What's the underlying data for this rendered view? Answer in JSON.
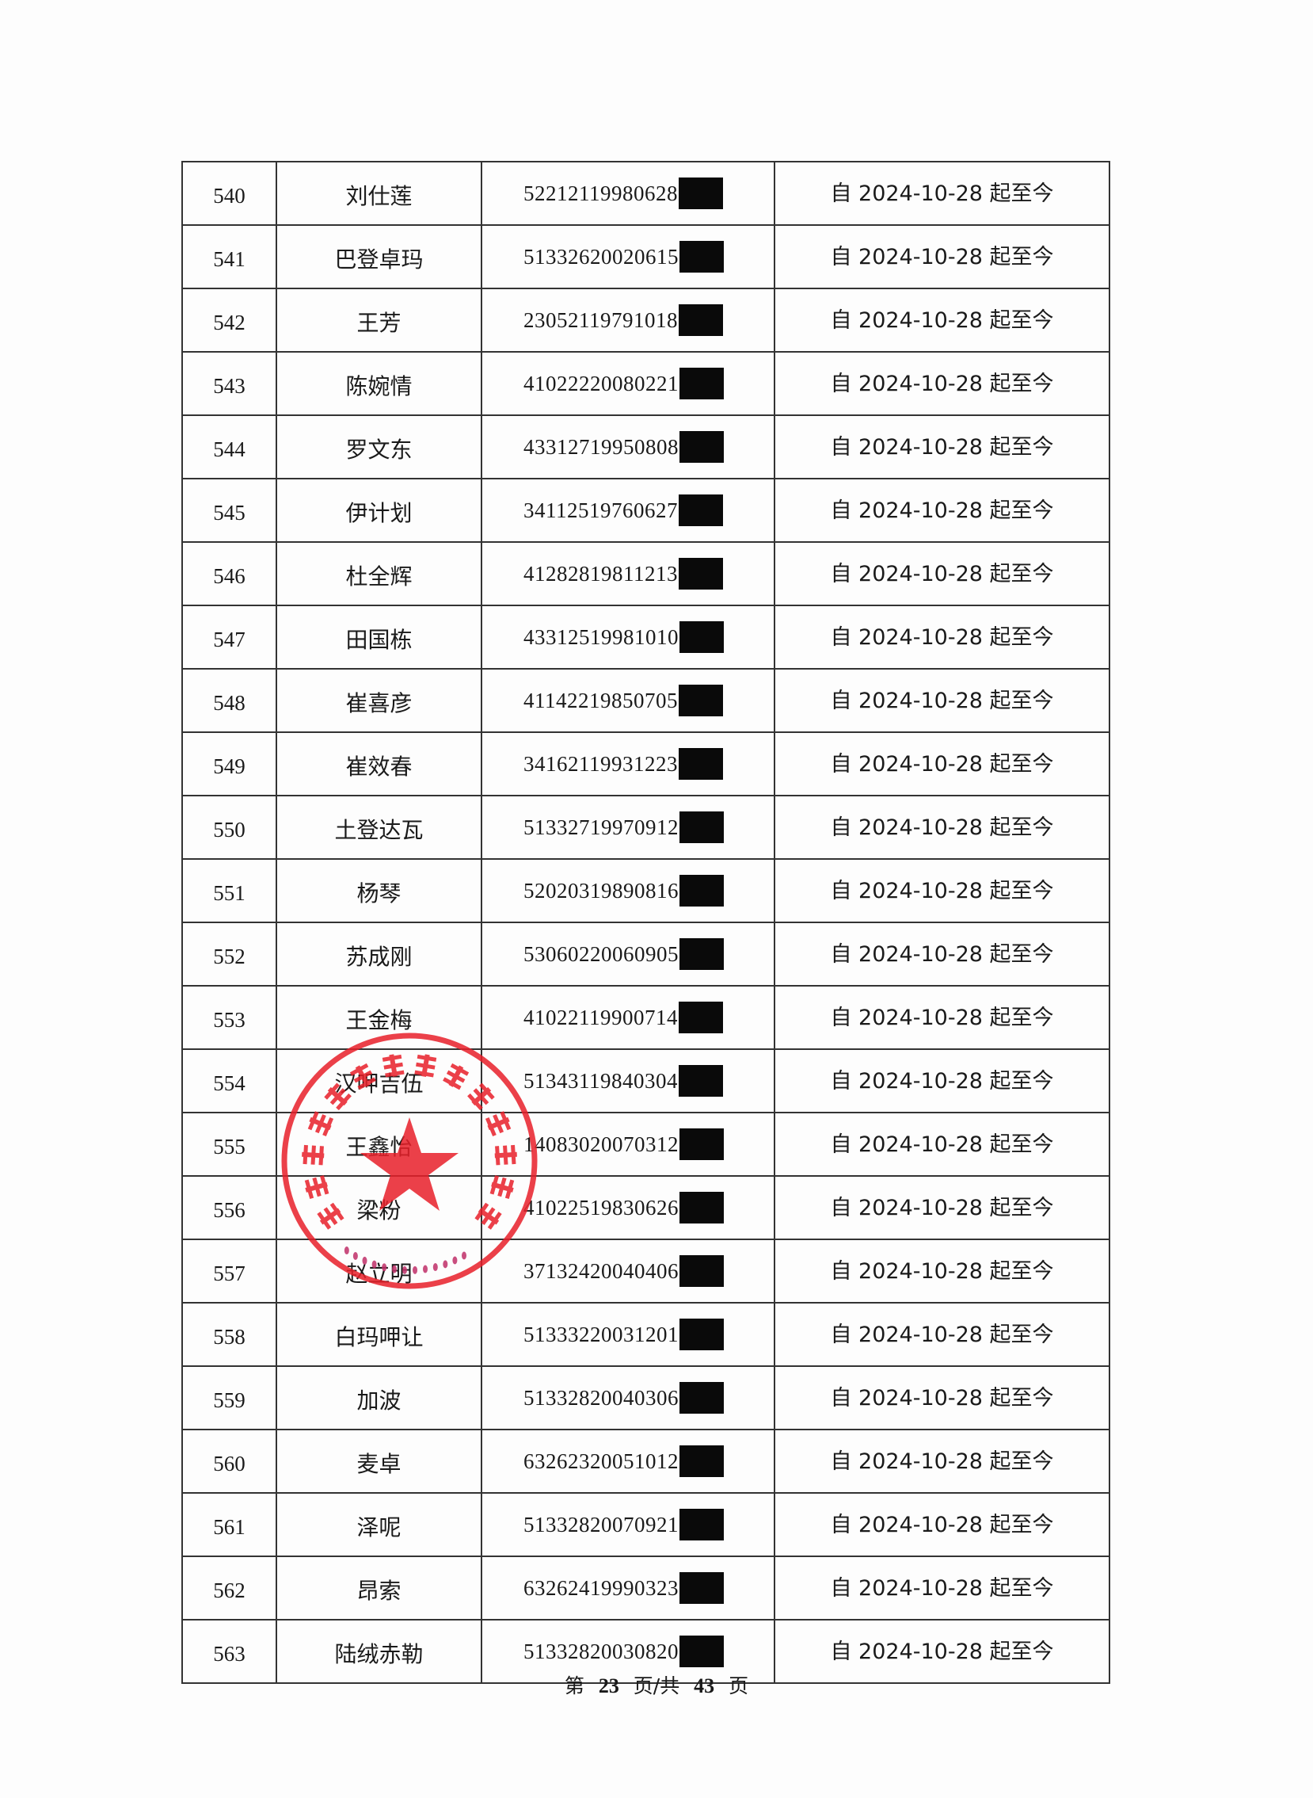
{
  "rows": [
    {
      "no": "540",
      "name": "刘仕莲",
      "id": "52212119980628",
      "period": "自 2024-10-28 起至今"
    },
    {
      "no": "541",
      "name": "巴登卓玛",
      "id": "51332620020615",
      "period": "自 2024-10-28 起至今"
    },
    {
      "no": "542",
      "name": "王芳",
      "id": "23052119791018",
      "period": "自 2024-10-28 起至今"
    },
    {
      "no": "543",
      "name": "陈婉情",
      "id": "41022220080221",
      "period": "自 2024-10-28 起至今"
    },
    {
      "no": "544",
      "name": "罗文东",
      "id": "43312719950808",
      "period": "自 2024-10-28 起至今"
    },
    {
      "no": "545",
      "name": "伊计划",
      "id": "34112519760627",
      "period": "自 2024-10-28 起至今"
    },
    {
      "no": "546",
      "name": "杜全辉",
      "id": "41282819811213",
      "period": "自 2024-10-28 起至今"
    },
    {
      "no": "547",
      "name": "田国栋",
      "id": "43312519981010",
      "period": "自 2024-10-28 起至今"
    },
    {
      "no": "548",
      "name": "崔喜彦",
      "id": "41142219850705",
      "period": "自 2024-10-28 起至今"
    },
    {
      "no": "549",
      "name": "崔效春",
      "id": "34162119931223",
      "period": "自 2024-10-28 起至今"
    },
    {
      "no": "550",
      "name": "土登达瓦",
      "id": "51332719970912",
      "period": "自 2024-10-28 起至今"
    },
    {
      "no": "551",
      "name": "杨琴",
      "id": "52020319890816",
      "period": "自 2024-10-28 起至今"
    },
    {
      "no": "552",
      "name": "苏成刚",
      "id": "53060220060905",
      "period": "自 2024-10-28 起至今"
    },
    {
      "no": "553",
      "name": "王金梅",
      "id": "41022119900714",
      "period": "自 2024-10-28 起至今"
    },
    {
      "no": "554",
      "name": "汉呷吉伍",
      "id": "51343119840304",
      "period": "自 2024-10-28 起至今"
    },
    {
      "no": "555",
      "name": "王鑫怡",
      "id": "14083020070312",
      "period": "自 2024-10-28 起至今"
    },
    {
      "no": "556",
      "name": "梁粉",
      "id": "41022519830626",
      "period": "自 2024-10-28 起至今"
    },
    {
      "no": "557",
      "name": "赵立明",
      "id": "37132420040406",
      "period": "自 2024-10-28 起至今"
    },
    {
      "no": "558",
      "name": "白玛呷让",
      "id": "51333220031201",
      "period": "自 2024-10-28 起至今"
    },
    {
      "no": "559",
      "name": "加波",
      "id": "51332820040306",
      "period": "自 2024-10-28 起至今"
    },
    {
      "no": "560",
      "name": "麦卓",
      "id": "63262320051012",
      "period": "自 2024-10-28 起至今"
    },
    {
      "no": "561",
      "name": "泽呢",
      "id": "51332820070921",
      "period": "自 2024-10-28 起至今"
    },
    {
      "no": "562",
      "name": "昂索",
      "id": "63262419990323",
      "period": "自 2024-10-28 起至今"
    },
    {
      "no": "563",
      "name": "陆绒赤勒",
      "id": "51332820030820",
      "period": "自 2024-10-28 起至今"
    }
  ],
  "footer": {
    "prefix": "第",
    "page": "23",
    "middle": "页/共",
    "total": "43",
    "suffix": "页"
  },
  "stamp": {
    "text": "宁波英普瑞斯社区管理有限公司",
    "code": "3302900008708",
    "color": "#e8202a"
  },
  "redaction_color": "#0a0a0a"
}
